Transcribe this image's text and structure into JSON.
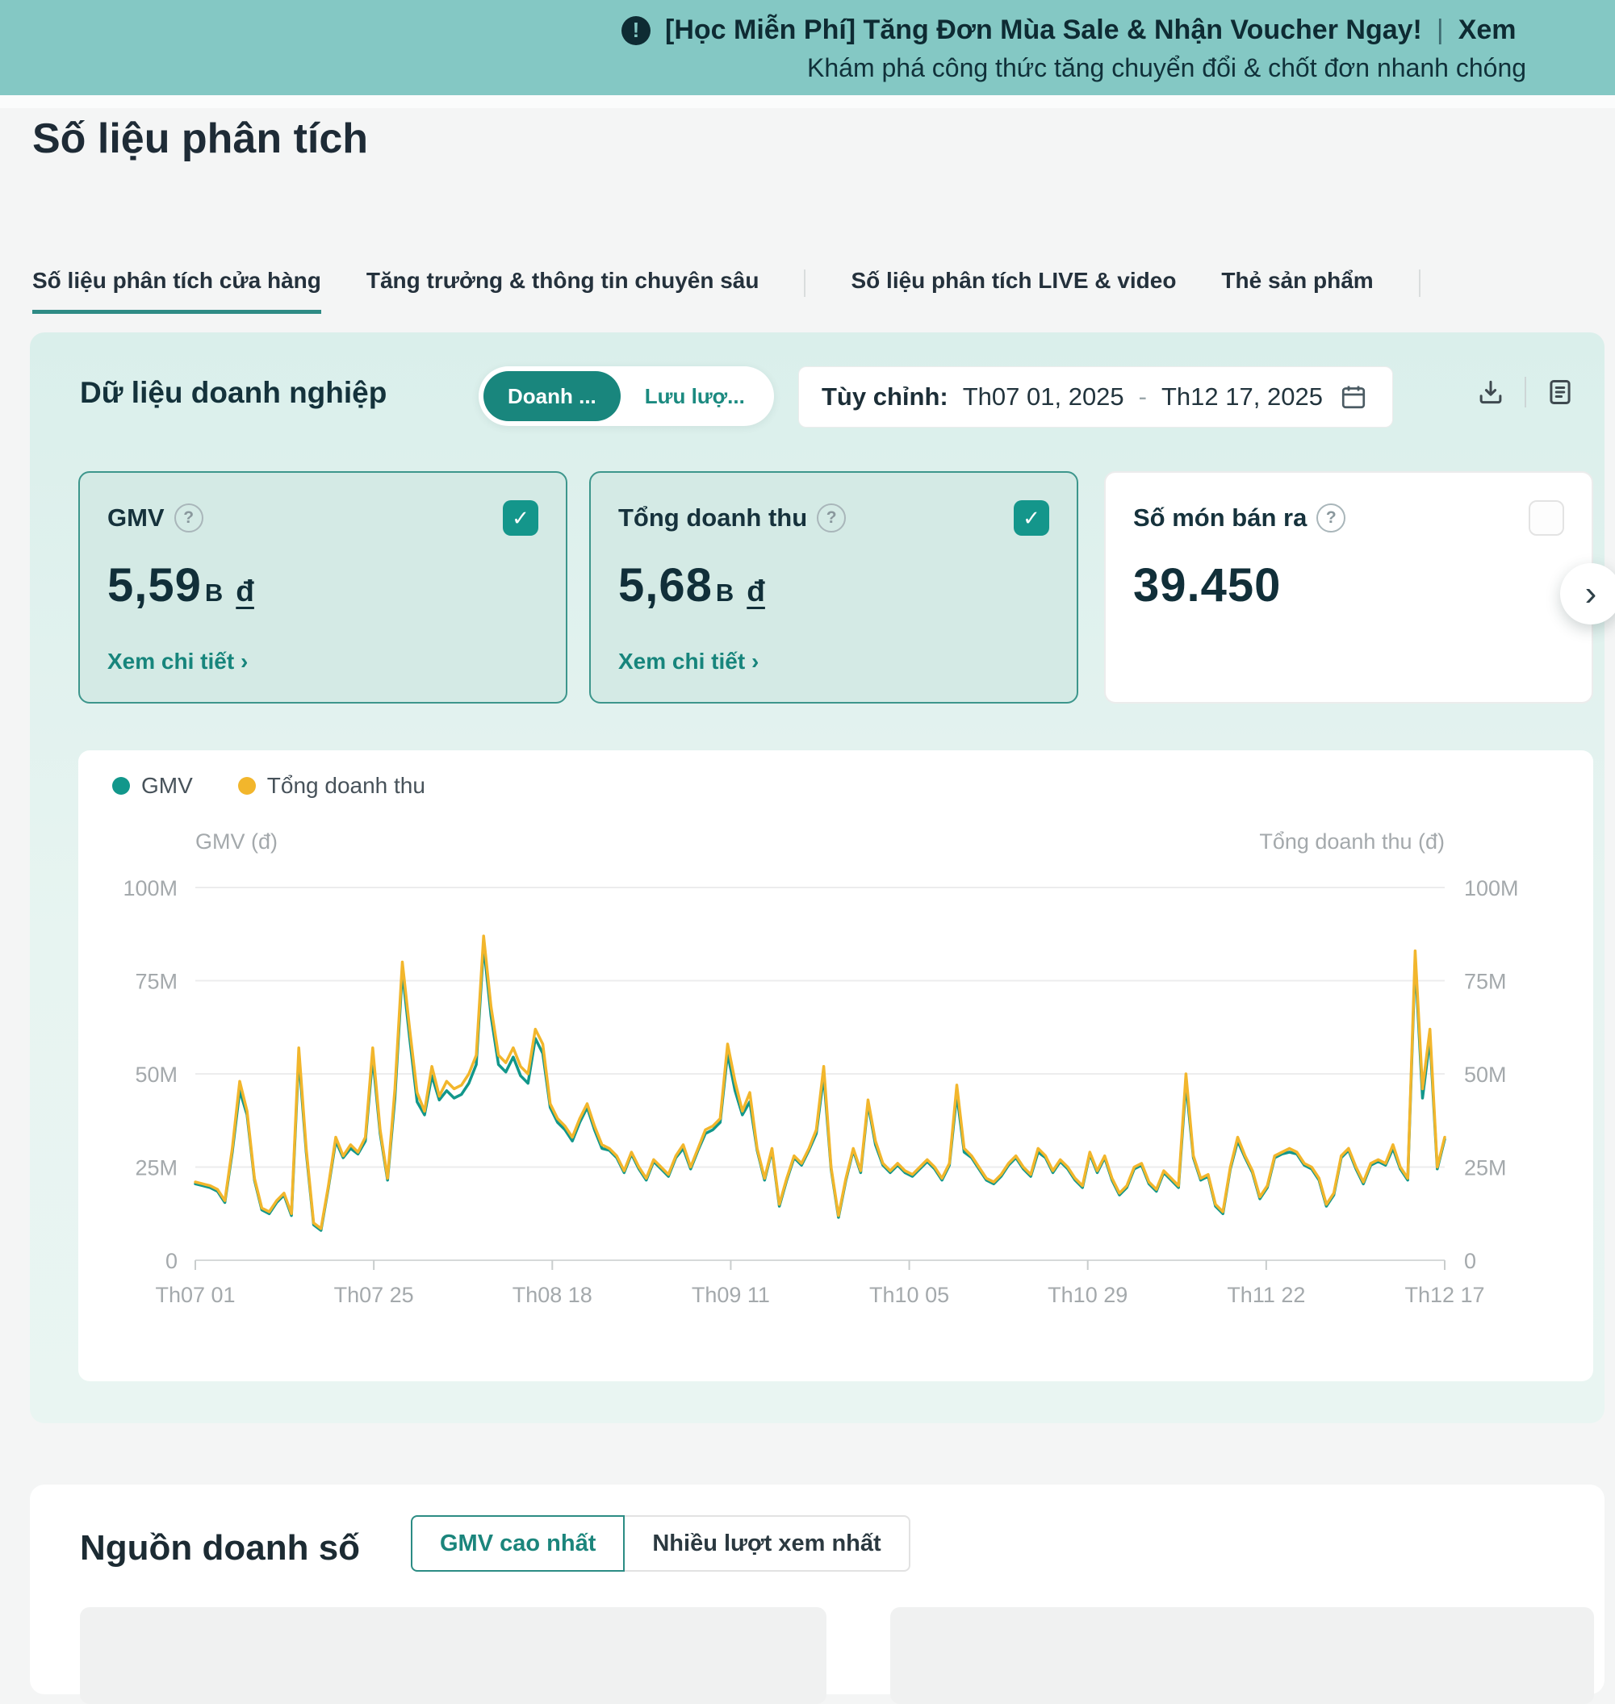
{
  "icons": {
    "bang": "!",
    "check": "✓",
    "question": "?",
    "chevron_right": "›",
    "link_arrow": "›"
  },
  "banner": {
    "line1": "[Học Miễn Phí] Tăng Đơn Mùa Sale & Nhận Voucher Ngay!",
    "separator": "|",
    "cta": "Xem",
    "line2": "Khám phá công thức tăng chuyển đổi & chốt đơn nhanh chóng"
  },
  "page": {
    "title": "Số liệu phân tích"
  },
  "tabs": [
    {
      "label": "Số liệu phân tích cửa hàng",
      "active": true
    },
    {
      "label": "Tăng trưởng & thông tin chuyên sâu",
      "active": false
    },
    {
      "divider": true
    },
    {
      "label": "Số liệu phân tích LIVE & video",
      "active": false
    },
    {
      "label": "Thẻ sản phẩm",
      "active": false
    },
    {
      "divider": true
    }
  ],
  "business_panel": {
    "title": "Dữ liệu doanh nghiệp",
    "toggle": [
      {
        "label": "Doanh ...",
        "selected": true
      },
      {
        "label": "Lưu lượ...",
        "selected": false
      }
    ],
    "date_range": {
      "prefix": "Tùy chỉnh:",
      "start": "Th07 01, 2025",
      "separator": "-",
      "end": "Th12 17, 2025"
    }
  },
  "metric_cards": [
    {
      "label": "GMV",
      "value_main": "5,59",
      "value_sub": "B",
      "currency": "đ",
      "checked": true,
      "selected": true,
      "link": "Xem chi tiết"
    },
    {
      "label": "Tổng doanh thu",
      "value_main": "5,68",
      "value_sub": "B",
      "currency": "đ",
      "checked": true,
      "selected": true,
      "link": "Xem chi tiết"
    },
    {
      "label": "Số món bán ra",
      "value_main": "39.450",
      "value_sub": "",
      "currency": "",
      "checked": false,
      "selected": false,
      "link": ""
    }
  ],
  "chart_data": {
    "type": "line",
    "legend": [
      "GMV",
      "Tổng doanh thu"
    ],
    "legend_position": "top-left",
    "grid": true,
    "left_axis_label": "GMV (đ)",
    "right_axis_label": "Tổng doanh thu (đ)",
    "y_ticks": [
      "100M",
      "75M",
      "50M",
      "25M",
      "0"
    ],
    "ylim": [
      0,
      100
    ],
    "unit": "million đ per day",
    "x_ticks": [
      "Th07 01",
      "Th07 25",
      "Th08 18",
      "Th09 11",
      "Th10 05",
      "Th10 29",
      "Th11 22",
      "Th12 17"
    ],
    "series": [
      {
        "name": "GMV",
        "color": "#12978b",
        "values": [
          20.5,
          20,
          19.5,
          18.5,
          15.5,
          29,
          45.5,
          39,
          21.5,
          13.5,
          12.5,
          15.5,
          17.5,
          12,
          54.5,
          29,
          9.5,
          8,
          19.5,
          32,
          27.5,
          30,
          28.5,
          32,
          54.5,
          34,
          21.5,
          43.5,
          77.5,
          59.5,
          42.5,
          39,
          49.5,
          43,
          45.5,
          43.5,
          44.5,
          47.5,
          52.5,
          84.5,
          65.5,
          52.5,
          50.5,
          54.5,
          49.5,
          47.5,
          59.5,
          55.5,
          41,
          37,
          35,
          32,
          37,
          41,
          35,
          30,
          29.5,
          27.5,
          23.5,
          28.5,
          24.5,
          21.5,
          26.5,
          24.5,
          22.5,
          27.5,
          30,
          24.5,
          29.5,
          34,
          35,
          37,
          55.5,
          45.5,
          39,
          42.5,
          29.5,
          21.5,
          29.5,
          14.5,
          21.5,
          27.5,
          25.5,
          29.5,
          34,
          49.5,
          24.5,
          11.5,
          21.5,
          29.5,
          23.5,
          42,
          31,
          25.5,
          23.5,
          25.5,
          23.5,
          22.5,
          24.5,
          26.5,
          24.5,
          21.5,
          25.5,
          44.5,
          29,
          27.5,
          24.5,
          21.5,
          20.5,
          22.5,
          25.5,
          27.5,
          24.5,
          22.5,
          29,
          27.5,
          23.5,
          26.5,
          24.5,
          21.5,
          19.5,
          28.5,
          23.5,
          27.5,
          21.5,
          17.5,
          19.5,
          24.5,
          25.5,
          20.5,
          18.5,
          23.5,
          21.5,
          19.5,
          47.5,
          27.5,
          21.5,
          22.5,
          14.5,
          12.5,
          24.5,
          32,
          27.5,
          23.5,
          16.5,
          19.5,
          27.5,
          28.5,
          29,
          28.5,
          25.5,
          24.5,
          21.5,
          14.5,
          17.5,
          27.5,
          29.5,
          24.5,
          20.5,
          25.5,
          26.5,
          25.5,
          30,
          24.5,
          21.5,
          80.5,
          43.5,
          59.5,
          24.5,
          32.5
        ]
      },
      {
        "name": "Tổng doanh thu",
        "color": "#f2b62c",
        "values": [
          21,
          20.5,
          20,
          19,
          16,
          30,
          48,
          40,
          22,
          14,
          13,
          16,
          18,
          12.5,
          57,
          30,
          10,
          8.5,
          20,
          33,
          28,
          31,
          29,
          33,
          57,
          35,
          22,
          46,
          80,
          62,
          45,
          40,
          52,
          44,
          48,
          46,
          47,
          50,
          55,
          87,
          68,
          55,
          53,
          57,
          52,
          50,
          62,
          58,
          42,
          38,
          36,
          33,
          38,
          42,
          36,
          31,
          30,
          28,
          24,
          29,
          25,
          22,
          27,
          25,
          23,
          28,
          31,
          25,
          30,
          35,
          36,
          38,
          58,
          48,
          40,
          45,
          30,
          22,
          30,
          15,
          22,
          28,
          26,
          30,
          35,
          52,
          25,
          12,
          22,
          30,
          24,
          43,
          32,
          26,
          24,
          26,
          24,
          23,
          25,
          27,
          25,
          22,
          26,
          47,
          30,
          28,
          25,
          22,
          21,
          23,
          26,
          28,
          25,
          23,
          30,
          28,
          24,
          27,
          25,
          22,
          20,
          29,
          24,
          28,
          22,
          18,
          20,
          25,
          26,
          21,
          19,
          24,
          22,
          20,
          50,
          28,
          22,
          23,
          15,
          13,
          25,
          33,
          28,
          24,
          17,
          20,
          28,
          29,
          30,
          29,
          26,
          25,
          22,
          15,
          18,
          28,
          30,
          25,
          21,
          26,
          27,
          26,
          31,
          25,
          22,
          83,
          46,
          62,
          25,
          33
        ]
      }
    ]
  },
  "sales_source": {
    "title": "Nguồn doanh số",
    "tabs": [
      {
        "label": "GMV cao nhất",
        "active": true
      },
      {
        "label": "Nhiều lượt xem nhất",
        "active": false
      }
    ]
  }
}
